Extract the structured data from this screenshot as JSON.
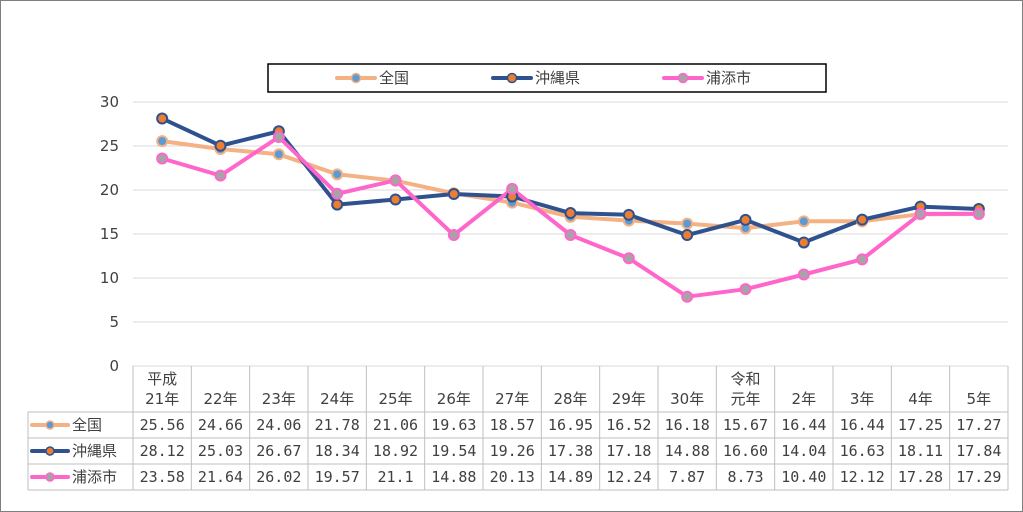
{
  "chart_data": {
    "type": "line",
    "categories": [
      [
        "平成",
        "21年"
      ],
      [
        "22年"
      ],
      [
        "23年"
      ],
      [
        "24年"
      ],
      [
        "25年"
      ],
      [
        "26年"
      ],
      [
        "27年"
      ],
      [
        "28年"
      ],
      [
        "29年"
      ],
      [
        "30年"
      ],
      [
        "令和",
        "元年"
      ],
      [
        "2年"
      ],
      [
        "3年"
      ],
      [
        "4年"
      ],
      [
        "5年"
      ]
    ],
    "ylim": [
      0,
      30
    ],
    "yticks": [
      0,
      5,
      10,
      15,
      20,
      25,
      30
    ],
    "grid": true,
    "legend_position": "top-center",
    "series": [
      {
        "name": "全国",
        "color": "#f4b183",
        "marker_fill": "#5b9bd5",
        "values": [
          25.56,
          24.66,
          24.06,
          21.78,
          21.06,
          19.63,
          18.57,
          16.95,
          16.52,
          16.18,
          15.67,
          16.44,
          16.44,
          17.25,
          17.27
        ],
        "labels": [
          "25.56",
          "24.66",
          "24.06",
          "21.78",
          "21.06",
          "19.63",
          "18.57",
          "16.95",
          "16.52",
          "16.18",
          "15.67",
          "16.44",
          "16.44",
          "17.25",
          "17.27"
        ]
      },
      {
        "name": "沖縄県",
        "color": "#2f528f",
        "marker_fill": "#ed7d31",
        "values": [
          28.12,
          25.03,
          26.67,
          18.34,
          18.92,
          19.54,
          19.26,
          17.38,
          17.18,
          14.88,
          16.6,
          14.04,
          16.63,
          18.11,
          17.84
        ],
        "labels": [
          "28.12",
          "25.03",
          "26.67",
          "18.34",
          "18.92",
          "19.54",
          "19.26",
          "17.38",
          "17.18",
          "14.88",
          "16.60",
          "14.04",
          "16.63",
          "18.11",
          "17.84"
        ]
      },
      {
        "name": "浦添市",
        "color": "#ff66cc",
        "marker_fill": "#a5a5a5",
        "values": [
          23.58,
          21.64,
          26.02,
          19.57,
          21.1,
          14.88,
          20.13,
          14.89,
          12.24,
          7.87,
          8.73,
          10.4,
          12.12,
          17.28,
          17.29
        ],
        "labels": [
          "23.58",
          "21.64",
          "26.02",
          "19.57",
          "21.1",
          "14.88",
          "20.13",
          "14.89",
          "12.24",
          "7.87",
          "8.73",
          "10.40",
          "12.12",
          "17.28",
          "17.29"
        ]
      }
    ]
  }
}
